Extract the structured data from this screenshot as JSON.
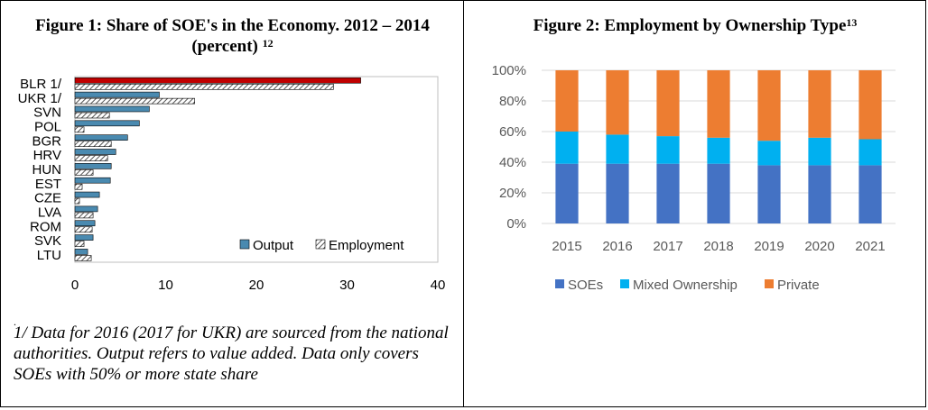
{
  "figure1": {
    "title": "Figure 1: Share of SOE's in the Economy. 2012 – 2014 (percent)",
    "title_sup": "12",
    "note_marker": ".",
    "note": "1/ Data for 2016 (2017 for UKR) are sourced from the national authorities. Output refers to value added. Data only covers SOEs with 50% or more state share",
    "colors": {
      "output": "#4a8ab0",
      "highlight": "#c00000",
      "employment_hatch": "#555555"
    }
  },
  "figure2": {
    "title": "Figure 2: Employment by Ownership Type",
    "title_sup": "13",
    "colors": {
      "SOEs": "#4472c4",
      "Mixed Ownership": "#00b0f0",
      "Private": "#ed7d31"
    }
  },
  "chart_data": [
    {
      "type": "bar",
      "orientation": "horizontal",
      "categories": [
        "BLR 1/",
        "UKR 1/",
        "SVN",
        "POL",
        "BGR",
        "HRV",
        "HUN",
        "EST",
        "CZE",
        "LVA",
        "ROM",
        "SVK",
        "LTU"
      ],
      "series": [
        {
          "name": "Output",
          "values": [
            31.5,
            9.3,
            8.2,
            7.1,
            5.8,
            4.5,
            4.0,
            3.9,
            2.7,
            2.5,
            2.2,
            2.0,
            1.4
          ]
        },
        {
          "name": "Employment",
          "values": [
            28.5,
            13.2,
            3.8,
            1.0,
            4.0,
            3.6,
            2.0,
            0.8,
            0.5,
            2.0,
            1.9,
            1.0,
            1.8
          ]
        }
      ],
      "xlim": [
        0,
        40
      ],
      "xticks": [
        "0",
        "10",
        "20",
        "30",
        "40"
      ],
      "legend": "bottom-right",
      "grid": false
    },
    {
      "type": "bar",
      "stacked": true,
      "categories": [
        "2015",
        "2016",
        "2017",
        "2018",
        "2019",
        "2020",
        "2021"
      ],
      "series": [
        {
          "name": "SOEs",
          "values": [
            39,
            39,
            39,
            39,
            38,
            38,
            38
          ]
        },
        {
          "name": "Mixed Ownership",
          "values": [
            21,
            19,
            18,
            17,
            16,
            18,
            17
          ]
        },
        {
          "name": "Private",
          "values": [
            40,
            42,
            43,
            44,
            46,
            44,
            45
          ]
        }
      ],
      "ylim": [
        0,
        100
      ],
      "yticks": [
        "0%",
        "20%",
        "40%",
        "60%",
        "80%",
        "100%"
      ],
      "legend": "bottom",
      "grid": true
    }
  ]
}
